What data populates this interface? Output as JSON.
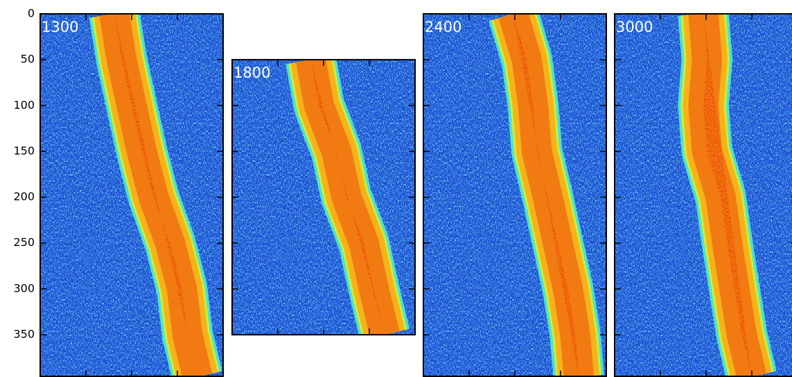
{
  "chart_data": [
    {
      "type": "heatmap",
      "label": "1300",
      "ylim": [
        396,
        0
      ],
      "xlim": [
        0,
        200
      ],
      "yticks": [
        0,
        50,
        100,
        150,
        200,
        250,
        300,
        350
      ],
      "xticks": [
        50,
        100,
        150
      ],
      "ytick_labels": true,
      "band": {
        "y": [
          0,
          50,
          100,
          150,
          200,
          250,
          300,
          350,
          396
        ],
        "center": [
          81,
          89,
          100,
          111,
          124,
          142,
          155,
          161,
          172
        ],
        "width": 45
      }
    },
    {
      "type": "heatmap",
      "label": "1800",
      "ylim": [
        350,
        50
      ],
      "xlim": [
        0,
        200
      ],
      "yticks": [
        100,
        150,
        200,
        250,
        300
      ],
      "xticks": [
        50,
        100,
        150
      ],
      "ytick_labels": false,
      "band": {
        "y": [
          50,
          100,
          150,
          200,
          250,
          300,
          350
        ],
        "center": [
          86,
          95,
          114,
          125,
          144,
          155,
          167
        ],
        "width": 45
      }
    },
    {
      "type": "heatmap",
      "label": "2400",
      "ylim": [
        396,
        0
      ],
      "xlim": [
        0,
        200
      ],
      "yticks": [
        50,
        100,
        150,
        200,
        250,
        300,
        350
      ],
      "xticks": [
        50,
        100,
        150
      ],
      "ytick_labels": false,
      "band": {
        "y": [
          0,
          50,
          100,
          150,
          200,
          250,
          300,
          350,
          396
        ],
        "center": [
          98,
          113,
          120,
          124,
          136,
          147,
          158,
          166,
          170
        ],
        "width": 45
      }
    },
    {
      "type": "heatmap",
      "label": "3000",
      "ylim": [
        396,
        0
      ],
      "xlim": [
        0,
        200
      ],
      "yticks": [
        50,
        100,
        150,
        200,
        250,
        300,
        350
      ],
      "xticks": [
        50,
        100,
        150
      ],
      "ytick_labels": false,
      "band": {
        "y": [
          0,
          50,
          100,
          150,
          200,
          250,
          300,
          350,
          396
        ],
        "center": [
          97,
          101,
          97,
          101,
          116,
          123,
          131,
          139,
          150
        ],
        "width": 45
      }
    }
  ]
}
